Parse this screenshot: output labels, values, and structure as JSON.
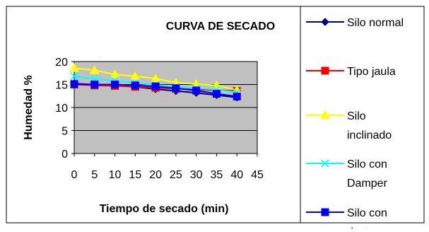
{
  "chart_data": {
    "type": "line",
    "title": "CURVA DE SECADO",
    "xlabel": "Tiempo de secado (min)",
    "ylabel": "Humedad %",
    "x": [
      0,
      5,
      10,
      15,
      20,
      25,
      30,
      35,
      40
    ],
    "xlim": [
      0,
      45
    ],
    "xticks": [
      0,
      5,
      10,
      15,
      20,
      25,
      30,
      35,
      40,
      45
    ],
    "ylim": [
      0,
      20
    ],
    "yticks": [
      0,
      5,
      10,
      15,
      20
    ],
    "grid": true,
    "plot_background": "#c0c0c0",
    "legend_position": "right",
    "series": [
      {
        "name": "Silo normal",
        "color": "#000080",
        "marker": "diamond",
        "values": [
          15.2,
          15.0,
          14.8,
          14.5,
          14.0,
          13.6,
          13.2,
          12.7,
          12.2
        ]
      },
      {
        "name": "Tipo jaula",
        "color": "#ff0000",
        "marker": "square",
        "values": [
          15.0,
          14.8,
          14.7,
          14.5,
          14.3,
          14.1,
          13.9,
          13.8,
          13.6
        ]
      },
      {
        "name": "Silo inclinado",
        "color": "#ffff00",
        "marker": "triangle",
        "values": [
          18.6,
          18.1,
          17.2,
          16.8,
          16.3,
          15.4,
          15.1,
          14.8,
          13.8
        ]
      },
      {
        "name": "Silo con Damper",
        "color": "#00ffff",
        "marker": "x",
        "values": [
          16.8,
          16.2,
          15.8,
          15.3,
          14.9,
          14.5,
          14.2,
          13.9,
          13.3
        ]
      },
      {
        "name": "Silo con ductos",
        "color": "#0000ff",
        "marker": "square",
        "values": [
          15.1,
          15.0,
          15.0,
          14.8,
          14.6,
          14.2,
          13.7,
          13.0,
          12.4
        ]
      }
    ]
  }
}
